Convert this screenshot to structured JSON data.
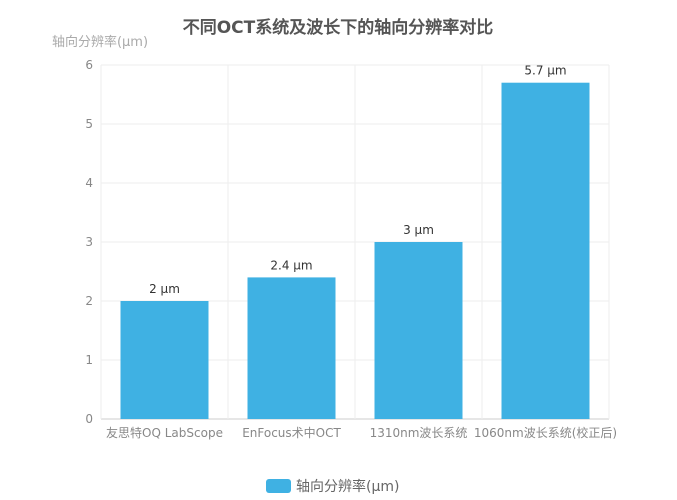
{
  "chart_data": {
    "type": "bar",
    "title": "不同OCT系统及波长下的轴向分辨率对比",
    "ylabel": "轴向分辨率(μm)",
    "xlabel": "",
    "categories": [
      "友思特OQ LabScope",
      "EnFocus术中OCT",
      "1310nm波长系统",
      "1060nm波长系统(校正后)"
    ],
    "series": [
      {
        "name": "轴向分辨率(μm)",
        "values": [
          2,
          2.4,
          3,
          5.7
        ]
      }
    ],
    "data_labels": [
      "2 μm",
      "2.4 μm",
      "3 μm",
      "5.7 μm"
    ],
    "ylim": [
      0,
      6
    ],
    "yticks": [
      "0",
      "1",
      "2",
      "3",
      "4",
      "5",
      "6"
    ],
    "grid": true,
    "legend": "bottom",
    "color": "#3fb1e3"
  }
}
